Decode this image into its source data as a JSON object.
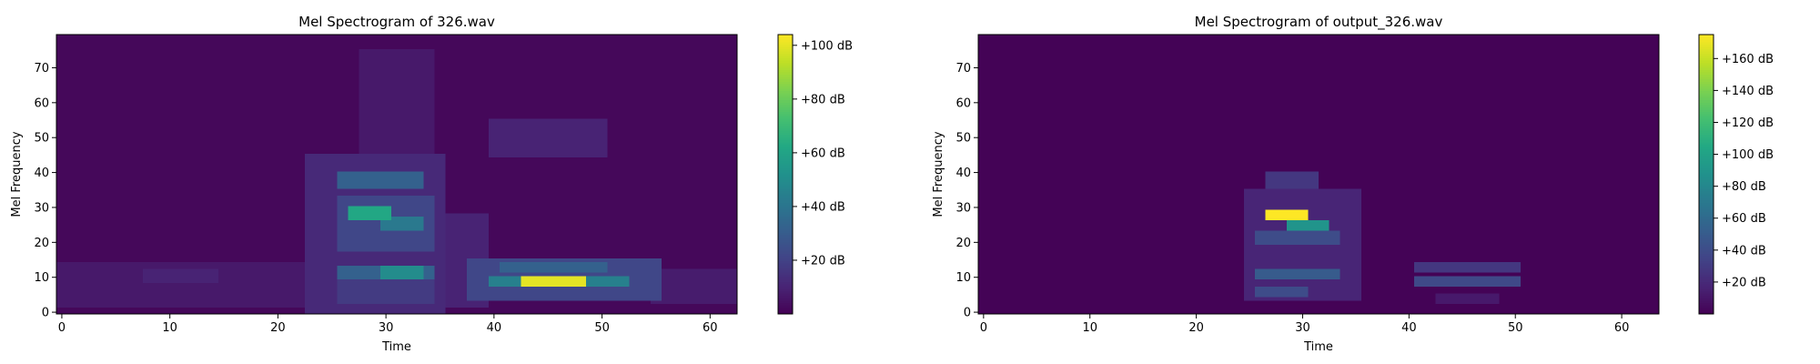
{
  "chart_data": [
    {
      "type": "heatmap",
      "title": "Mel Spectrogram of 326.wav",
      "xlabel": "Time",
      "ylabel": "Mel Frequency",
      "xlim": [
        -0.5,
        62.5
      ],
      "ylim": [
        -0.5,
        79.5
      ],
      "xticks": [
        0,
        10,
        20,
        30,
        40,
        50,
        60
      ],
      "yticks": [
        0,
        10,
        20,
        30,
        40,
        50,
        60,
        70
      ],
      "colorbar": {
        "min": 0,
        "max": 104,
        "ticks": [
          20,
          40,
          60,
          80,
          100
        ],
        "tick_labels": [
          "+20 dB",
          "+40 dB",
          "+60 dB",
          "+80 dB",
          "+100 dB"
        ]
      },
      "colormap": "viridis",
      "background_level": 2,
      "blobs": [
        {
          "t": [
            0,
            25
          ],
          "f": [
            2,
            14
          ],
          "v": 7
        },
        {
          "t": [
            8,
            14
          ],
          "f": [
            9,
            12
          ],
          "v": 10
        },
        {
          "t": [
            23,
            35
          ],
          "f": [
            0,
            45
          ],
          "v": 12
        },
        {
          "t": [
            28,
            34
          ],
          "f": [
            45,
            75
          ],
          "v": 7
        },
        {
          "t": [
            26,
            33
          ],
          "f": [
            36,
            40
          ],
          "v": 32
        },
        {
          "t": [
            27,
            30
          ],
          "f": [
            27,
            30
          ],
          "v": 62
        },
        {
          "t": [
            30,
            33
          ],
          "f": [
            24,
            27
          ],
          "v": 42
        },
        {
          "t": [
            26,
            34
          ],
          "f": [
            18,
            33
          ],
          "v": 22
        },
        {
          "t": [
            26,
            34
          ],
          "f": [
            10,
            13
          ],
          "v": 32
        },
        {
          "t": [
            30,
            33
          ],
          "f": [
            10,
            13
          ],
          "v": 50
        },
        {
          "t": [
            26,
            34
          ],
          "f": [
            3,
            9
          ],
          "v": 18
        },
        {
          "t": [
            34,
            39
          ],
          "f": [
            2,
            28
          ],
          "v": 10
        },
        {
          "t": [
            38,
            55
          ],
          "f": [
            4,
            15
          ],
          "v": 22
        },
        {
          "t": [
            40,
            52
          ],
          "f": [
            8,
            10
          ],
          "v": 45
        },
        {
          "t": [
            43,
            48
          ],
          "f": [
            8,
            10
          ],
          "v": 100
        },
        {
          "t": [
            41,
            50
          ],
          "f": [
            12,
            14
          ],
          "v": 32
        },
        {
          "t": [
            55,
            62
          ],
          "f": [
            3,
            12
          ],
          "v": 8
        },
        {
          "t": [
            40,
            50
          ],
          "f": [
            45,
            55
          ],
          "v": 10
        }
      ]
    },
    {
      "type": "heatmap",
      "title": "Mel Spectrogram of output_326.wav",
      "xlabel": "Time",
      "ylabel": "Mel Frequency",
      "xlim": [
        -0.5,
        63.5
      ],
      "ylim": [
        -0.5,
        79.5
      ],
      "xticks": [
        0,
        10,
        20,
        30,
        40,
        50,
        60
      ],
      "yticks": [
        0,
        10,
        20,
        30,
        40,
        50,
        60,
        70
      ],
      "colorbar": {
        "min": 0,
        "max": 175,
        "ticks": [
          20,
          40,
          60,
          80,
          100,
          120,
          140,
          160
        ],
        "tick_labels": [
          "+20 dB",
          "+40 dB",
          "+60 dB",
          "+80 dB",
          "+100 dB",
          "+120 dB",
          "+140 dB",
          "+160 dB"
        ]
      },
      "colormap": "viridis",
      "background_level": 1,
      "blobs": [
        {
          "t": [
            25,
            35
          ],
          "f": [
            4,
            35
          ],
          "v": 18
        },
        {
          "t": [
            27,
            31
          ],
          "f": [
            36,
            40
          ],
          "v": 28
        },
        {
          "t": [
            27,
            30
          ],
          "f": [
            27,
            29
          ],
          "v": 175
        },
        {
          "t": [
            29,
            32
          ],
          "f": [
            24,
            26
          ],
          "v": 90
        },
        {
          "t": [
            26,
            33
          ],
          "f": [
            20,
            23
          ],
          "v": 40
        },
        {
          "t": [
            26,
            33
          ],
          "f": [
            10,
            12
          ],
          "v": 50
        },
        {
          "t": [
            26,
            30
          ],
          "f": [
            5,
            7
          ],
          "v": 40
        },
        {
          "t": [
            41,
            50
          ],
          "f": [
            8,
            10
          ],
          "v": 38
        },
        {
          "t": [
            41,
            50
          ],
          "f": [
            12,
            14
          ],
          "v": 28
        },
        {
          "t": [
            43,
            48
          ],
          "f": [
            3,
            5
          ],
          "v": 12
        }
      ]
    }
  ]
}
